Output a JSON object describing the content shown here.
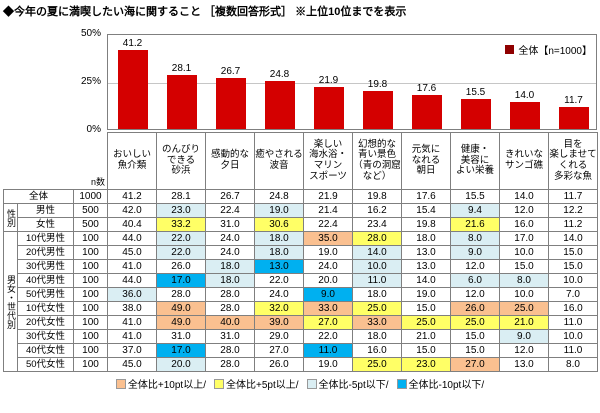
{
  "title": "◆今年の夏に満喫したい海に関すること ［複数回答形式］ ※上位10位までを表示",
  "chart_data": {
    "type": "bar",
    "title": "今年の夏に満喫したい海に関すること（上位10位）",
    "legend": "全体【n=1000】",
    "ylim": [
      0,
      50
    ],
    "yticks": [
      "50%",
      "25%",
      "0%"
    ],
    "grid": "horizontal line at 25%",
    "legend_position": "top-right",
    "bar_color": "#d40000",
    "legend_marker_color": "#8f0000",
    "categories": [
      "おいしい\n魚介類",
      "のんびり\nできる\n砂浜",
      "感動的な\n夕日",
      "癒やされる\n波音",
      "楽しい\n海水浴・\nマリン\nスポーツ",
      "幻想的な\n青い景色\n（青の洞窟\nなど）",
      "元気に\nなれる\n朝日",
      "健康・\n美容に\nよい栄養",
      "きれいな\nサンゴ礁",
      "目を\n楽しませて\nくれる\n多彩な魚"
    ],
    "values": [
      41.2,
      28.1,
      26.7,
      24.8,
      21.9,
      19.8,
      17.6,
      15.5,
      14.0,
      11.7
    ]
  },
  "table": {
    "n_header": "n数",
    "row_groups": [
      {
        "group_label": "",
        "rows": [
          {
            "label": "全体",
            "n": 1000,
            "values": [
              41.2,
              28.1,
              26.7,
              24.8,
              21.9,
              19.8,
              17.6,
              15.5,
              14.0,
              11.7
            ]
          }
        ]
      },
      {
        "group_label": "性別",
        "rows": [
          {
            "label": "男性",
            "n": 500,
            "values": [
              42.0,
              23.0,
              22.4,
              19.0,
              21.4,
              16.2,
              15.4,
              9.4,
              12.0,
              12.2
            ]
          },
          {
            "label": "女性",
            "n": 500,
            "values": [
              40.4,
              33.2,
              31.0,
              30.6,
              22.4,
              23.4,
              19.8,
              21.6,
              16.0,
              11.2
            ]
          }
        ]
      },
      {
        "group_label": "男女・世代別",
        "rows": [
          {
            "label": "10代男性",
            "n": 100,
            "values": [
              44.0,
              22.0,
              24.0,
              18.0,
              35.0,
              28.0,
              18.0,
              8.0,
              17.0,
              14.0
            ]
          },
          {
            "label": "20代男性",
            "n": 100,
            "values": [
              45.0,
              22.0,
              24.0,
              18.0,
              19.0,
              14.0,
              13.0,
              9.0,
              10.0,
              15.0
            ]
          },
          {
            "label": "30代男性",
            "n": 100,
            "values": [
              41.0,
              26.0,
              18.0,
              13.0,
              24.0,
              10.0,
              13.0,
              12.0,
              15.0,
              15.0
            ]
          },
          {
            "label": "40代男性",
            "n": 100,
            "values": [
              44.0,
              17.0,
              18.0,
              22.0,
              20.0,
              11.0,
              14.0,
              6.0,
              8.0,
              10.0
            ]
          },
          {
            "label": "50代男性",
            "n": 100,
            "values": [
              36.0,
              28.0,
              28.0,
              24.0,
              9.0,
              18.0,
              19.0,
              12.0,
              10.0,
              7.0
            ]
          },
          {
            "label": "10代女性",
            "n": 100,
            "values": [
              38.0,
              49.0,
              28.0,
              32.0,
              33.0,
              25.0,
              15.0,
              26.0,
              25.0,
              16.0
            ]
          },
          {
            "label": "20代女性",
            "n": 100,
            "values": [
              41.0,
              49.0,
              40.0,
              39.0,
              27.0,
              33.0,
              25.0,
              25.0,
              21.0,
              11.0
            ]
          },
          {
            "label": "30代女性",
            "n": 100,
            "values": [
              41.0,
              31.0,
              31.0,
              29.0,
              22.0,
              18.0,
              21.0,
              15.0,
              9.0,
              10.0
            ]
          },
          {
            "label": "40代女性",
            "n": 100,
            "values": [
              37.0,
              17.0,
              28.0,
              27.0,
              11.0,
              16.0,
              15.0,
              15.0,
              12.0,
              11.0
            ]
          },
          {
            "label": "50代女性",
            "n": 100,
            "values": [
              45.0,
              20.0,
              28.0,
              26.0,
              19.0,
              25.0,
              23.0,
              27.0,
              13.0,
              8.0
            ]
          }
        ]
      }
    ]
  },
  "highlight_colors": {
    "plus10": "#FAC090",
    "plus5": "#FFFF66",
    "minus5": "#DAEEF3",
    "minus10": "#00B0F0"
  },
  "legend_items": [
    {
      "label": "全体比+10pt以上/",
      "color": "#FAC090"
    },
    {
      "label": "全体比+5pt以上/",
      "color": "#FFFF66"
    },
    {
      "label": "全体比-5pt以下/",
      "color": "#DAEEF3"
    },
    {
      "label": "全体比-10pt以下/",
      "color": "#00B0F0"
    }
  ]
}
